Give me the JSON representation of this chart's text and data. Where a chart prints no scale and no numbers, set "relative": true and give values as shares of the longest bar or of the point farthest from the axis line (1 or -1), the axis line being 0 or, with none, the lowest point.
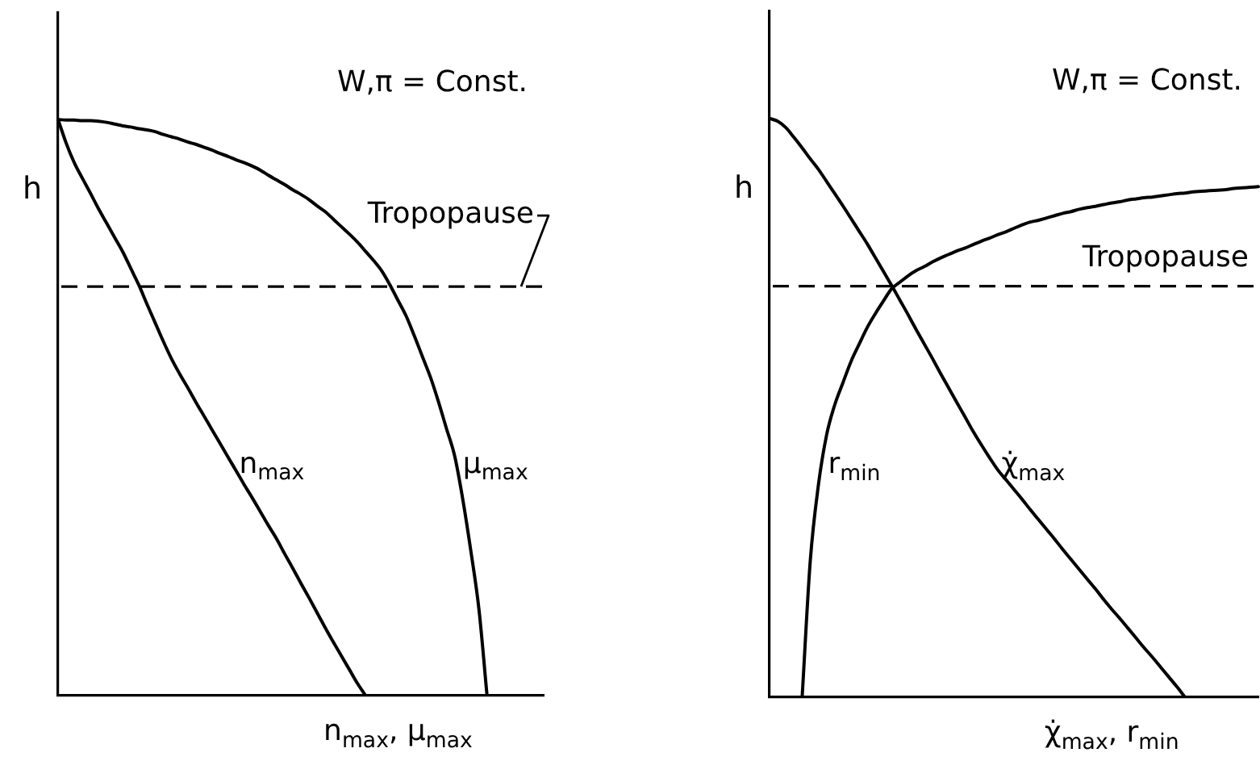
{
  "chart_data": [
    {
      "type": "line",
      "relative": true,
      "grid": false,
      "legend": false,
      "marker": "none",
      "line_style": "solid",
      "xlabel": "n$_{max}$, μ$_{max}$",
      "ylabel": "h",
      "annotations": [
        "W,π = Const."
      ],
      "ref_lines": [
        {
          "axis": "y",
          "value": 0.71,
          "label": "Tropopause",
          "color": "#000000",
          "line_style": "dashed"
        }
      ],
      "categories": [
        null,
        null,
        null,
        null,
        null,
        null,
        null,
        null,
        null,
        null,
        null,
        null,
        null,
        null,
        null,
        null,
        null,
        null,
        null,
        null,
        null,
        null,
        null,
        null,
        null,
        null,
        null,
        null,
        null,
        null,
        null,
        null,
        null,
        null,
        null,
        null,
        null,
        null,
        null,
        null,
        null,
        null,
        null,
        null,
        null,
        null,
        null,
        null,
        null,
        null,
        null,
        null,
        null,
        null,
        null,
        null,
        null,
        null,
        null,
        null,
        null
      ],
      "series": [
        {
          "name": "n$_{max}$",
          "color": "#000000",
          "values": [
            1.0,
            0.959,
            0.925,
            0.898,
            0.872,
            0.845,
            0.82,
            0.795,
            0.77,
            0.741,
            0.712,
            0.679,
            0.647,
            0.615,
            0.585,
            0.559,
            0.535,
            0.51,
            0.486,
            0.462,
            0.438,
            0.414,
            0.39,
            0.366,
            0.343,
            0.319,
            0.295,
            0.272,
            0.246,
            0.221,
            0.195,
            0.17,
            0.144,
            0.118,
            0.093,
            0.069,
            0.045,
            0.021,
            0,
            null,
            null,
            null,
            null,
            null,
            null,
            null,
            null,
            null,
            null,
            null,
            null,
            null,
            null,
            null,
            null,
            null,
            null,
            null,
            null,
            null,
            null
          ]
        },
        {
          "name": "μ$_{max}$",
          "color": "#000000",
          "values": [
            1.0,
            0.999,
            0.999,
            0.998,
            0.998,
            0.997,
            0.995,
            0.992,
            0.989,
            0.987,
            0.984,
            0.982,
            0.979,
            0.974,
            0.97,
            0.966,
            0.961,
            0.957,
            0.952,
            0.947,
            0.941,
            0.936,
            0.93,
            0.925,
            0.919,
            0.912,
            0.903,
            0.895,
            0.887,
            0.878,
            0.87,
            0.861,
            0.85,
            0.84,
            0.827,
            0.814,
            0.801,
            0.787,
            0.771,
            0.755,
            0.737,
            0.713,
            0.686,
            0.659,
            0.625,
            0.589,
            0.553,
            0.51,
            0.463,
            0.416,
            0.341,
            0.251,
            0.15,
            0,
            null,
            null,
            null,
            null,
            null,
            null,
            null
          ]
        }
      ]
    },
    {
      "type": "line",
      "relative": true,
      "grid": false,
      "legend": false,
      "marker": "none",
      "line_style": "solid",
      "xlabel": "χ̇$_{max}$, r$_{min}$",
      "ylabel": "h",
      "annotations": [
        "W,π = Const."
      ],
      "ref_lines": [
        {
          "axis": "y",
          "value": 0.71,
          "label": "Tropopause",
          "color": "#000000",
          "line_style": "dashed"
        }
      ],
      "categories": [
        null,
        null,
        null,
        null,
        null,
        null,
        null,
        null,
        null,
        null,
        null,
        null,
        null,
        null,
        null,
        null,
        null,
        null,
        null,
        null,
        null,
        null,
        null,
        null,
        null,
        null,
        null,
        null,
        null,
        null,
        null,
        null,
        null,
        null,
        null,
        null,
        null,
        null,
        null,
        null,
        null,
        null,
        null,
        null,
        null,
        null,
        null,
        null,
        null,
        null,
        null,
        null,
        null,
        null,
        null,
        null,
        null,
        null,
        null,
        null,
        null
      ],
      "series": [
        {
          "name": "χ̇$_{max}$",
          "color": "#000000",
          "values": [
            1.0,
            0.995,
            0.984,
            0.967,
            0.949,
            0.93,
            0.912,
            0.891,
            0.87,
            0.849,
            0.827,
            0.805,
            0.783,
            0.759,
            0.735,
            0.711,
            0.686,
            0.661,
            0.635,
            0.61,
            0.585,
            0.559,
            0.534,
            0.509,
            0.484,
            0.459,
            0.436,
            0.414,
            0.393,
            0.376,
            0.359,
            0.342,
            0.324,
            0.307,
            0.29,
            0.273,
            0.255,
            0.238,
            0.221,
            0.204,
            0.187,
            0.169,
            0.152,
            0.136,
            0.119,
            0.102,
            0.085,
            0.069,
            0.052,
            0.035,
            0.018,
            0,
            null,
            null,
            null,
            null,
            null,
            null,
            null,
            null,
            null
          ]
        },
        {
          "name": "r$_{min}$",
          "color": "#000000",
          "values": [
            null,
            null,
            null,
            null,
            0,
            0.236,
            0.367,
            0.453,
            0.505,
            0.543,
            0.58,
            0.61,
            0.639,
            0.663,
            0.685,
            0.706,
            0.717,
            0.728,
            0.737,
            0.744,
            0.752,
            0.759,
            0.765,
            0.771,
            0.776,
            0.782,
            0.788,
            0.793,
            0.799,
            0.804,
            0.81,
            0.816,
            0.821,
            0.824,
            0.828,
            0.832,
            0.836,
            0.839,
            0.843,
            0.846,
            0.848,
            0.851,
            0.854,
            0.856,
            0.859,
            0.861,
            0.863,
            0.864,
            0.866,
            0.868,
            0.87,
            0.871,
            0.873,
            0.874,
            0.875,
            0.876,
            0.877,
            0.879,
            0.88,
            0.881,
            0.882
          ]
        }
      ]
    }
  ]
}
